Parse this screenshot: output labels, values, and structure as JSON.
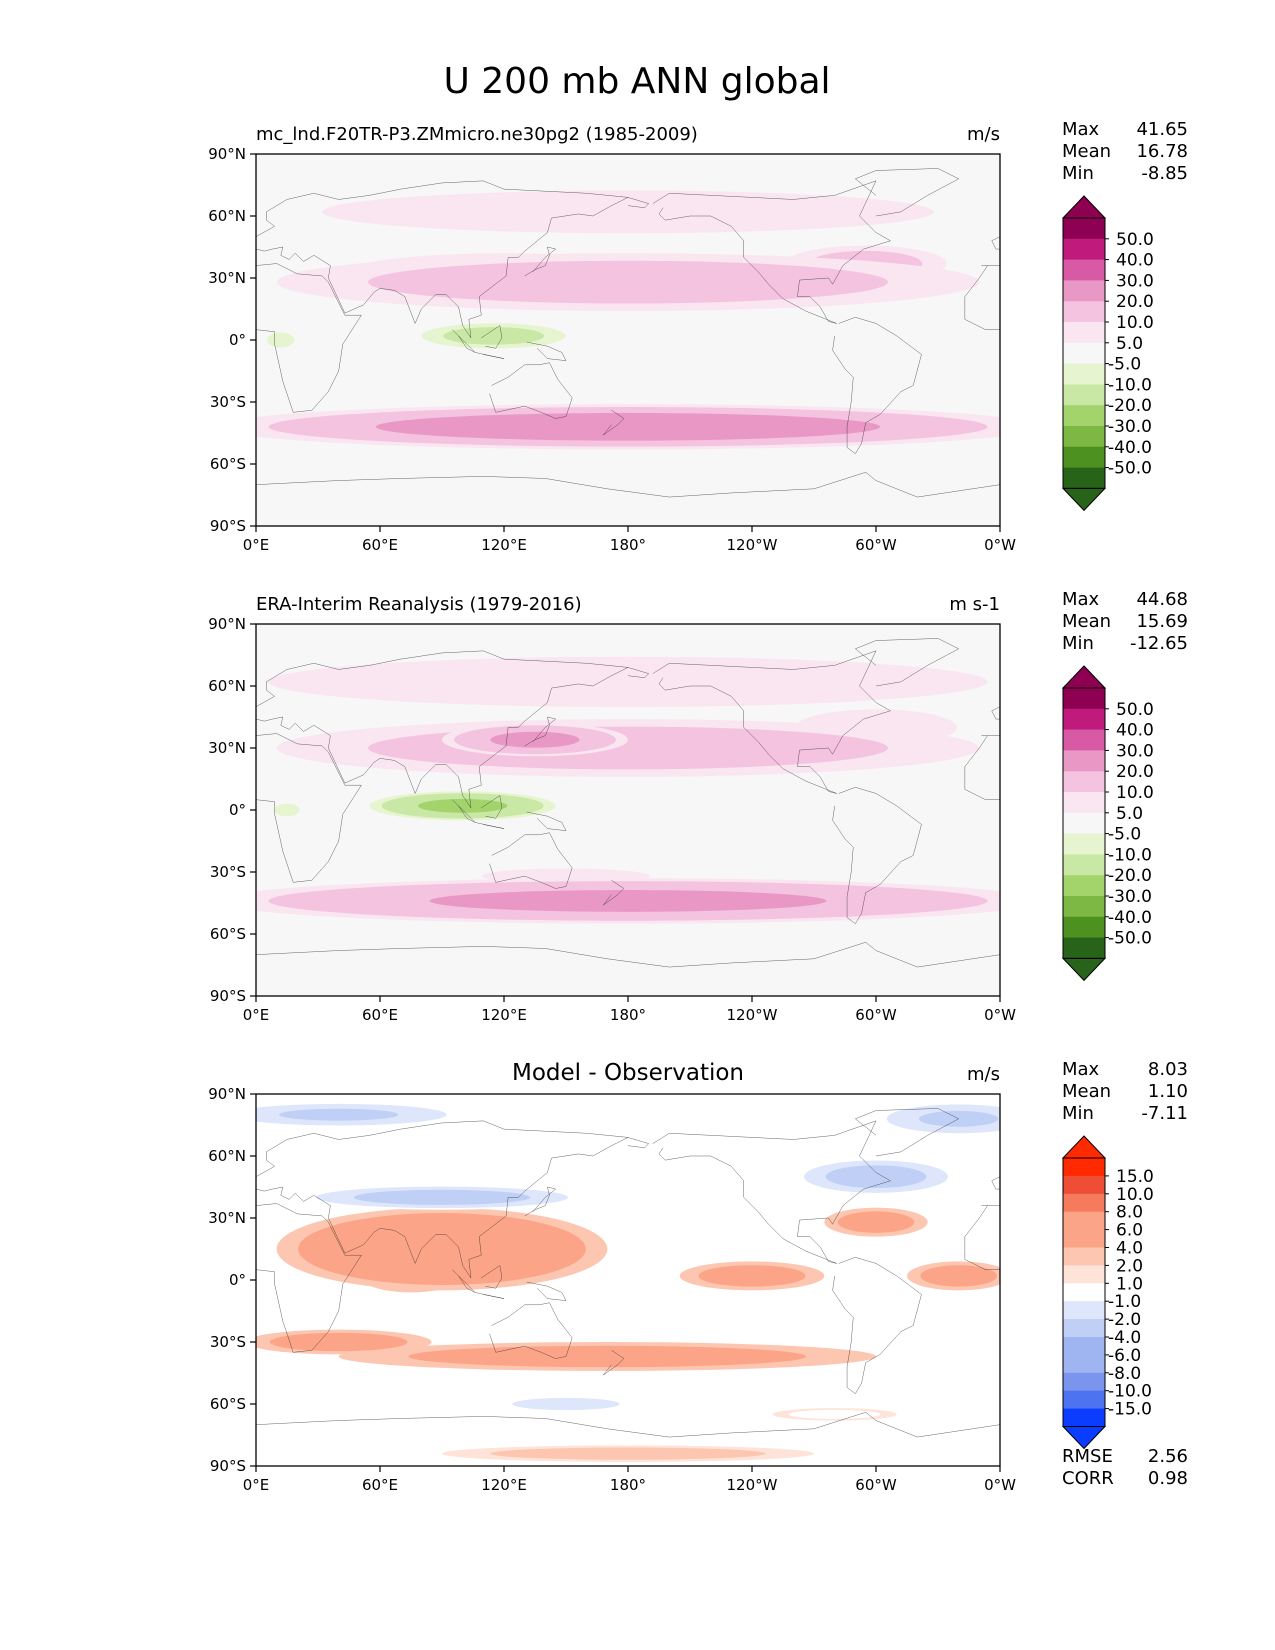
{
  "figure_title": "U 200 mb ANN global",
  "x_ticks": [
    "0°E",
    "60°E",
    "120°E",
    "180°",
    "120°W",
    "60°W",
    "0°W"
  ],
  "y_ticks": [
    "90°N",
    "60°N",
    "30°N",
    "0°",
    "30°S",
    "60°S",
    "90°S"
  ],
  "stat_labels": {
    "max": "Max",
    "mean": "Mean",
    "min": "Min",
    "rmse": "RMSE",
    "corr": "CORR"
  },
  "colors": {
    "pink_levels": [
      "#fae6f1",
      "#f4c3df",
      "#e998c6",
      "#d85aa5",
      "#c01a7d",
      "#8e0152"
    ],
    "green_levels": [
      "#e6f5d0",
      "#c9e8a5",
      "#a3d46c",
      "#7cb843",
      "#4d9221",
      "#276419"
    ],
    "red_levels": [
      "#fee3d8",
      "#fcc6b0",
      "#fca487",
      "#f57b5c",
      "#ee4d36",
      "#ff2a00"
    ],
    "blue_levels": [
      "#dde6fa",
      "#c0cff6",
      "#9fb5f1",
      "#7b95ee",
      "#4d73f0",
      "#0a3dff"
    ],
    "near_zero": "#f7f7f7",
    "coast": "#222222"
  },
  "chart_data": [
    {
      "type": "heatmap",
      "panel": "test",
      "title": "mc_lnd.F20TR-P3.ZMmicro.ne30pg2 (1985-2009)",
      "units": "m/s",
      "stats": {
        "max": "41.65",
        "mean": "16.78",
        "min": "-8.85"
      },
      "colorbar_levels": [
        "50.0",
        "40.0",
        "30.0",
        "20.0",
        "10.0",
        "5.0",
        "-5.0",
        "-10.0",
        "-20.0",
        "-30.0",
        "-40.0",
        "-50.0"
      ],
      "xlim": [
        0,
        360
      ],
      "ylim": [
        -90,
        90
      ],
      "field": [
        {
          "lon": 180,
          "lat": 28,
          "slon": 170,
          "slat": 14,
          "v": 18
        },
        {
          "lon": 120,
          "lat": 33,
          "slon": 75,
          "slat": 9,
          "v": 17
        },
        {
          "lon": 145,
          "lat": 34,
          "slon": 20,
          "slat": 4,
          "v": 16
        },
        {
          "lon": 295,
          "lat": 37,
          "slon": 45,
          "slat": 10,
          "v": 14
        },
        {
          "lon": 180,
          "lat": -42,
          "slon": 200,
          "slat": 11,
          "v": 24
        },
        {
          "lon": 115,
          "lat": 2,
          "slon": 40,
          "slat": 7,
          "v": -14
        },
        {
          "lon": 12,
          "lat": 0,
          "slon": 9,
          "slat": 5,
          "v": -8
        },
        {
          "lon": 180,
          "lat": 62,
          "slon": 200,
          "slat": 14,
          "v": 9
        }
      ]
    },
    {
      "type": "heatmap",
      "panel": "reference",
      "title": "ERA-Interim Reanalysis (1979-2016)",
      "units": "m s-1",
      "stats": {
        "max": "44.68",
        "mean": "15.69",
        "min": "-12.65"
      },
      "colorbar_levels": [
        "50.0",
        "40.0",
        "30.0",
        "20.0",
        "10.0",
        "5.0",
        "-5.0",
        "-10.0",
        "-20.0",
        "-30.0",
        "-40.0",
        "-50.0"
      ],
      "xlim": [
        0,
        360
      ],
      "ylim": [
        -90,
        90
      ],
      "field": [
        {
          "lon": 180,
          "lat": 30,
          "slon": 170,
          "slat": 14,
          "v": 18
        },
        {
          "lon": 135,
          "lat": 34,
          "slon": 45,
          "slat": 8,
          "v": 22
        },
        {
          "lon": 145,
          "lat": 34,
          "slon": 22,
          "slat": 5,
          "v": 14
        },
        {
          "lon": 300,
          "lat": 40,
          "slon": 45,
          "slat": 10,
          "v": 10
        },
        {
          "lon": 180,
          "lat": -44,
          "slon": 200,
          "slat": 11,
          "v": 22
        },
        {
          "lon": 150,
          "lat": -32,
          "slon": 55,
          "slat": 5,
          "v": 8
        },
        {
          "lon": 100,
          "lat": 2,
          "slon": 45,
          "slat": 7,
          "v": -22
        },
        {
          "lon": 15,
          "lat": 0,
          "slon": 10,
          "slat": 5,
          "v": -6
        },
        {
          "lon": 180,
          "lat": 62,
          "slon": 200,
          "slat": 14,
          "v": 10
        }
      ]
    },
    {
      "type": "heatmap",
      "panel": "difference",
      "title": "Model - Observation",
      "units": "m/s",
      "stats": {
        "max": "8.03",
        "mean": "1.10",
        "min": "-7.11"
      },
      "rmse": "2.56",
      "corr": "0.98",
      "colorbar_levels": [
        "15.0",
        "10.0",
        "8.0",
        "6.0",
        "4.0",
        "2.0",
        "1.0",
        "-1.0",
        "-2.0",
        "-4.0",
        "-6.0",
        "-8.0",
        "-10.0",
        "-15.0"
      ],
      "xlim": [
        0,
        360
      ],
      "ylim": [
        -90,
        90
      ],
      "field": [
        {
          "lon": 90,
          "lat": 15,
          "slon": 80,
          "slat": 20,
          "v": 4
        },
        {
          "lon": 75,
          "lat": 2,
          "slon": 25,
          "slat": 8,
          "v": 3
        },
        {
          "lon": 240,
          "lat": 2,
          "slon": 35,
          "slat": 7,
          "v": 3
        },
        {
          "lon": 340,
          "lat": 2,
          "slon": 25,
          "slat": 7,
          "v": 3
        },
        {
          "lon": 300,
          "lat": 28,
          "slon": 25,
          "slat": 7,
          "v": 3
        },
        {
          "lon": 170,
          "lat": -37,
          "slon": 130,
          "slat": 7,
          "v": 3
        },
        {
          "lon": 40,
          "lat": -30,
          "slon": 45,
          "slat": 6,
          "v": 3
        },
        {
          "lon": 90,
          "lat": 40,
          "slon": 70,
          "slat": 6,
          "v": -5
        },
        {
          "lon": 300,
          "lat": 50,
          "slon": 40,
          "slat": 9,
          "v": -5
        },
        {
          "lon": 40,
          "lat": 80,
          "slon": 60,
          "slat": 6,
          "v": -4
        },
        {
          "lon": 340,
          "lat": 78,
          "slon": 40,
          "slat": 8,
          "v": -4
        },
        {
          "lon": 150,
          "lat": -60,
          "slon": 35,
          "slat": 4,
          "v": -3
        },
        {
          "lon": 280,
          "lat": -65,
          "slon": 30,
          "slat": 3,
          "v": -1.5
        },
        {
          "lon": 180,
          "lat": -84,
          "slon": 90,
          "slat": 4,
          "v": 1.5
        }
      ]
    }
  ]
}
